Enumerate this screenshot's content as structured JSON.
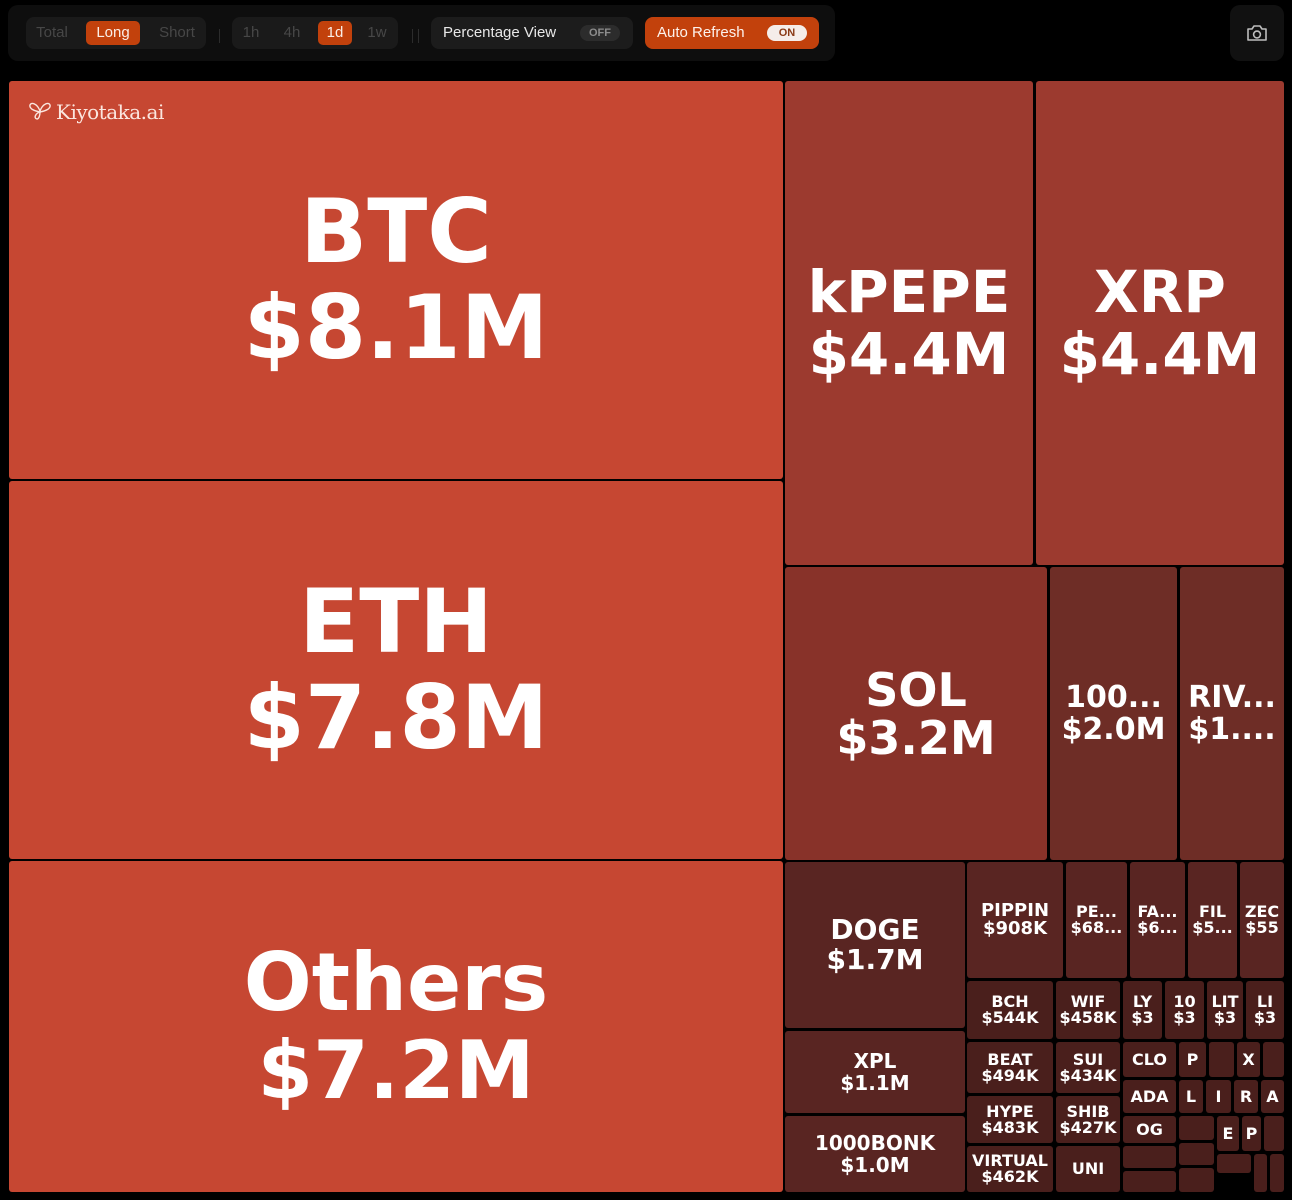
{
  "toolbar": {
    "side_options": [
      "Total",
      "Long",
      "Short"
    ],
    "side_selected": "Long",
    "time_options": [
      "1h",
      "4h",
      "1d",
      "1w"
    ],
    "time_selected": "1d",
    "percentage_view": {
      "label": "Percentage View",
      "state": "OFF"
    },
    "auto_refresh": {
      "label": "Auto Refresh",
      "state": "ON"
    },
    "snapshot_icon": "camera-icon"
  },
  "brand": {
    "name": "Kiyotaka.ai",
    "icon": "butterfly-icon"
  },
  "colors": {
    "accent": "#c2410c",
    "tile_strong": "#c64732",
    "tile_medium": "#9c3a2f",
    "tile_low": "#883229",
    "tile_dim": "#6e2d26",
    "tile_dark": "#592522",
    "tile_darkest": "#4a1f1c"
  },
  "heatmap": [
    {
      "symbol": "BTC",
      "value": "$8.1M"
    },
    {
      "symbol": "ETH",
      "value": "$7.8M"
    },
    {
      "symbol": "Others",
      "value": "$7.2M"
    },
    {
      "symbol": "kPEPE",
      "value": "$4.4M"
    },
    {
      "symbol": "XRP",
      "value": "$4.4M"
    },
    {
      "symbol": "SOL",
      "value": "$3.2M"
    },
    {
      "symbol": "100...",
      "value": "$2.0M"
    },
    {
      "symbol": "RIV...",
      "value": "$1...."
    },
    {
      "symbol": "DOGE",
      "value": "$1.7M"
    },
    {
      "symbol": "XPL",
      "value": "$1.1M"
    },
    {
      "symbol": "1000BONK",
      "value": "$1.0M"
    },
    {
      "symbol": "PIPPIN",
      "value": "$908K"
    },
    {
      "symbol": "PE...",
      "value": "$68..."
    },
    {
      "symbol": "FA...",
      "value": "$6..."
    },
    {
      "symbol": "FIL",
      "value": "$5..."
    },
    {
      "symbol": "ZEC",
      "value": "$55"
    },
    {
      "symbol": "BCH",
      "value": "$544K"
    },
    {
      "symbol": "WIF",
      "value": "$458K"
    },
    {
      "symbol": "LY",
      "value": "$3"
    },
    {
      "symbol": "10",
      "value": "$3"
    },
    {
      "symbol": "LIT",
      "value": "$3"
    },
    {
      "symbol": "LI",
      "value": "$3"
    },
    {
      "symbol": "BEAT",
      "value": "$494K"
    },
    {
      "symbol": "SUI",
      "value": "$434K"
    },
    {
      "symbol": "CLO",
      "value": ""
    },
    {
      "symbol": "P",
      "value": ""
    },
    {
      "symbol": "",
      "value": ""
    },
    {
      "symbol": "X",
      "value": ""
    },
    {
      "symbol": "",
      "value": ""
    },
    {
      "symbol": "HYPE",
      "value": "$483K"
    },
    {
      "symbol": "SHIB",
      "value": "$427K"
    },
    {
      "symbol": "ADA",
      "value": ""
    },
    {
      "symbol": "L",
      "value": ""
    },
    {
      "symbol": "I",
      "value": ""
    },
    {
      "symbol": "R",
      "value": ""
    },
    {
      "symbol": "A",
      "value": ""
    },
    {
      "symbol": "VIRTUAL",
      "value": "$462K"
    },
    {
      "symbol": "UNI",
      "value": ""
    },
    {
      "symbol": "OG",
      "value": ""
    },
    {
      "symbol": "",
      "value": ""
    },
    {
      "symbol": "E",
      "value": ""
    },
    {
      "symbol": "P",
      "value": ""
    },
    {
      "symbol": "",
      "value": ""
    },
    {
      "symbol": "",
      "value": ""
    },
    {
      "symbol": "",
      "value": ""
    },
    {
      "symbol": "",
      "value": ""
    },
    {
      "symbol": "",
      "value": ""
    },
    {
      "symbol": "",
      "value": ""
    },
    {
      "symbol": "",
      "value": ""
    },
    {
      "symbol": "",
      "value": ""
    }
  ]
}
